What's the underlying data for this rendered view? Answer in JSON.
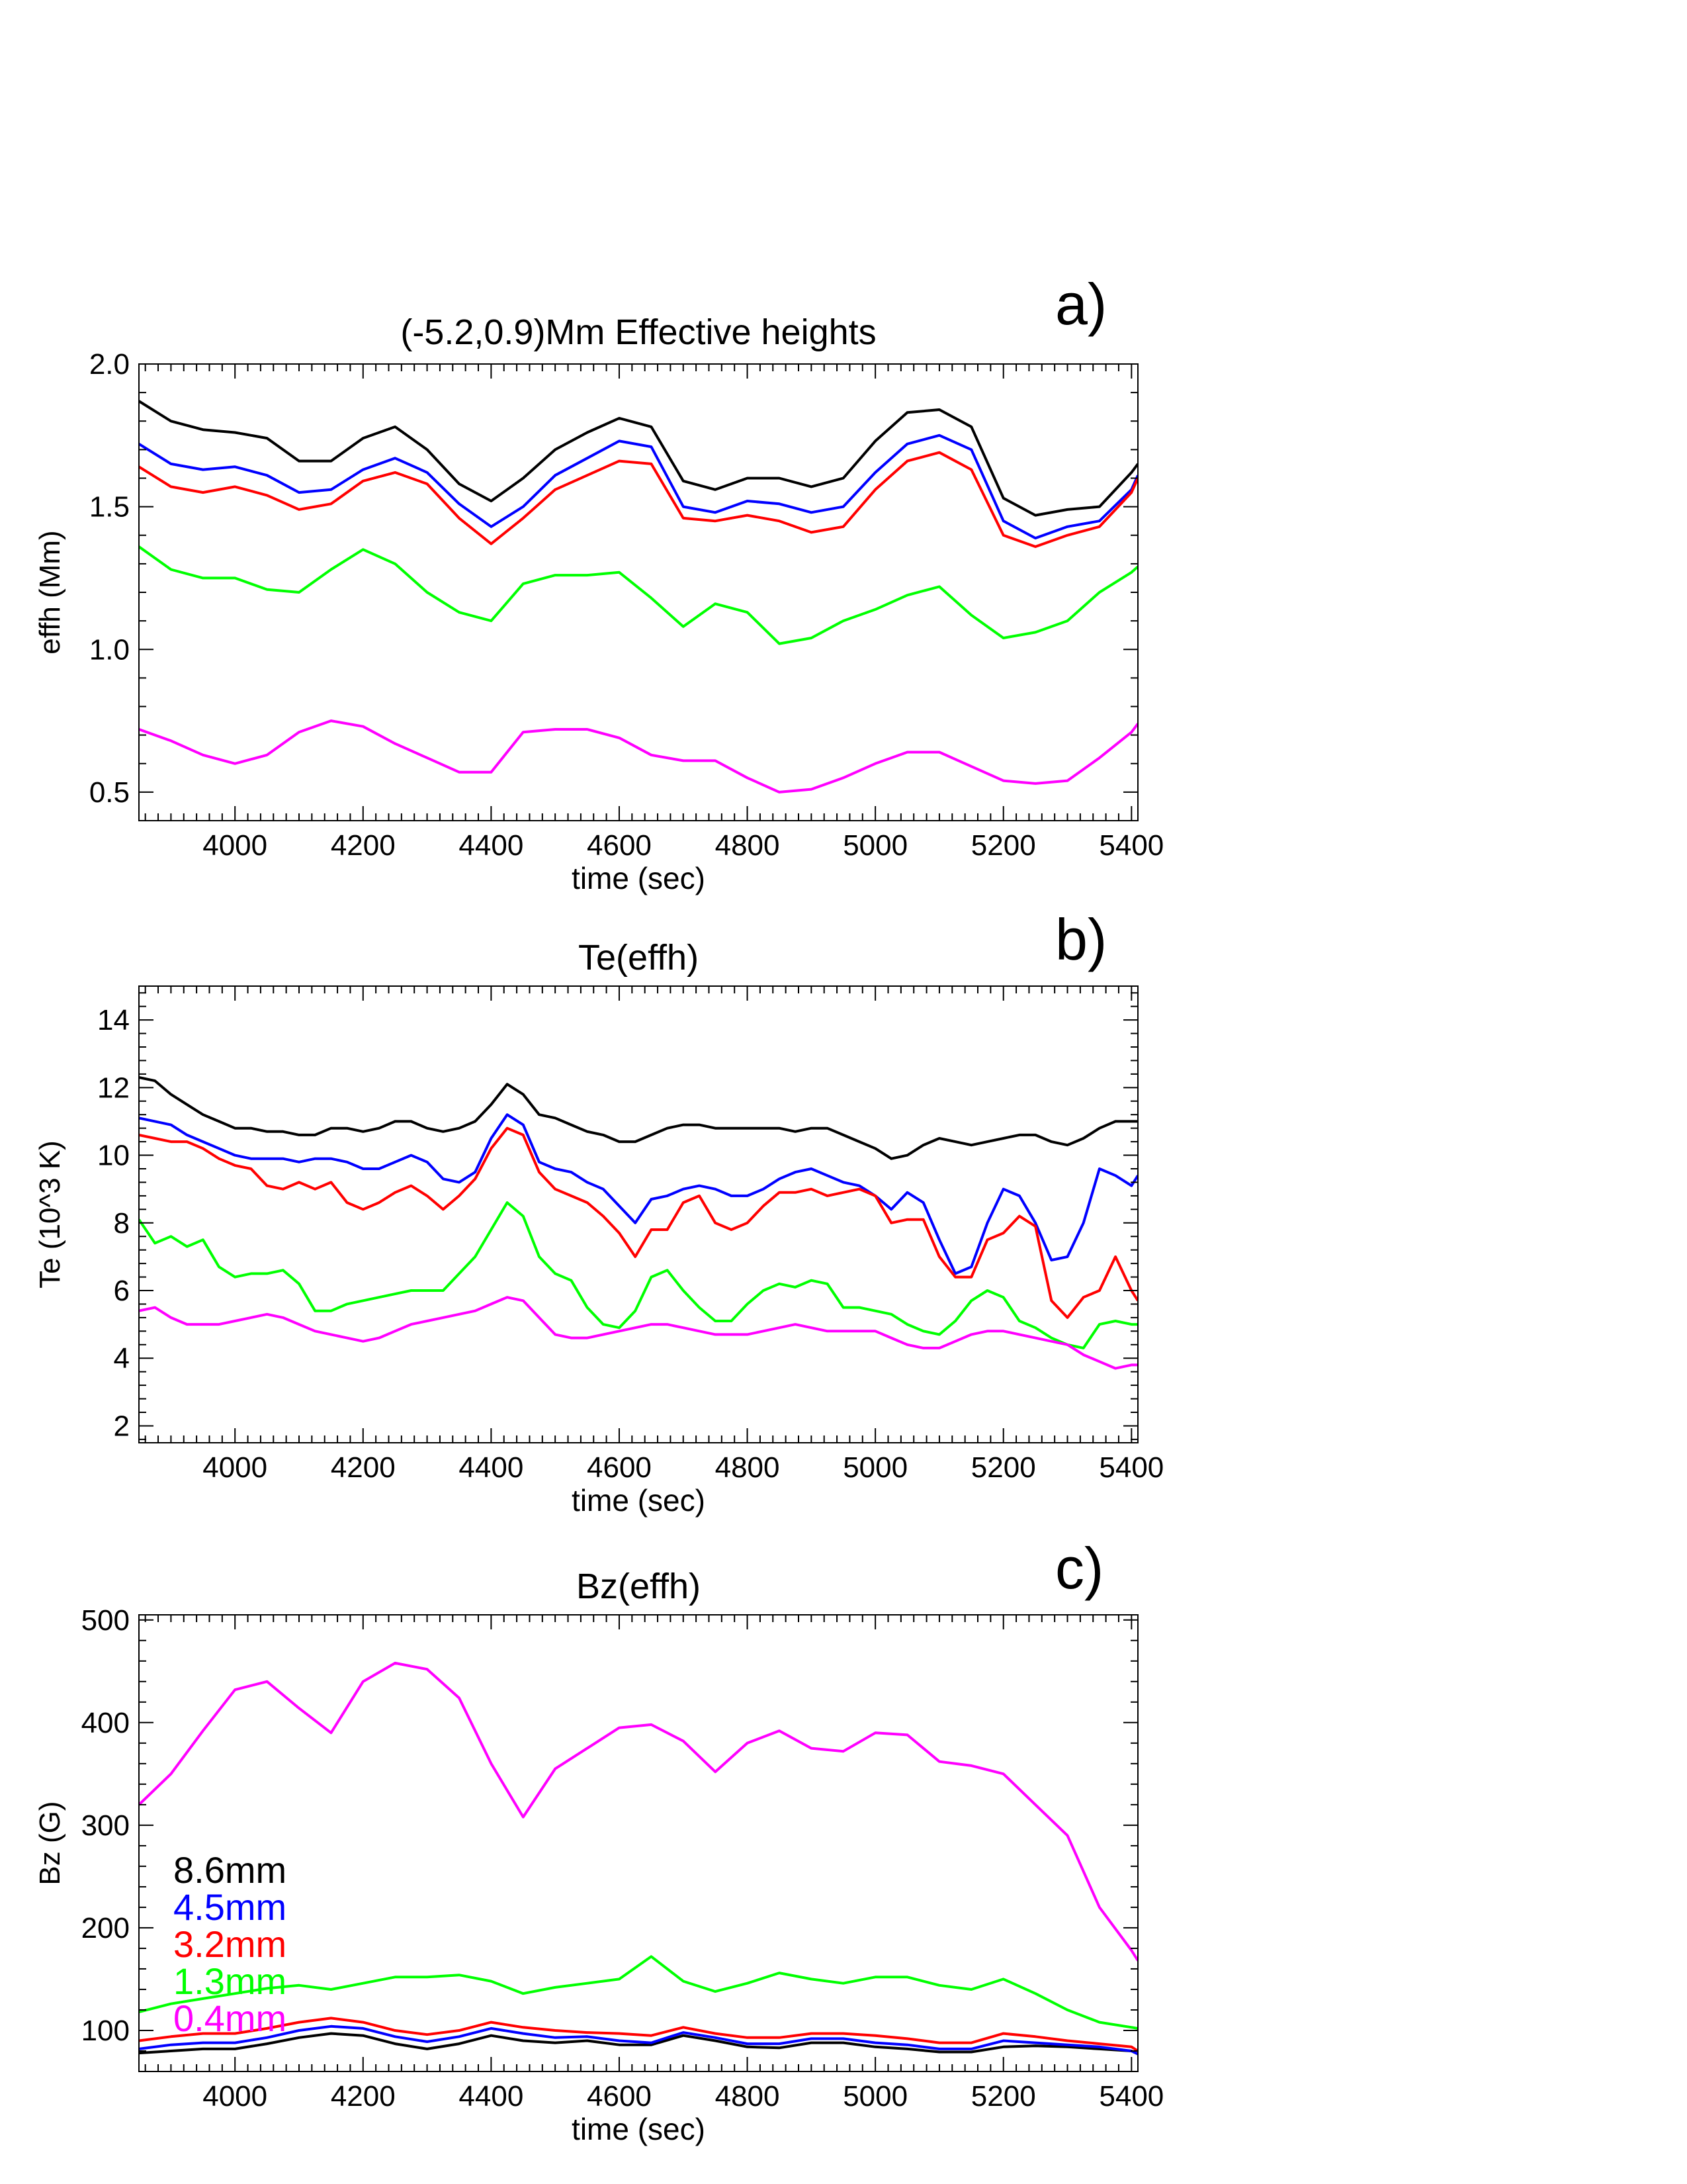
{
  "chart_data": [
    {
      "type": "line",
      "panel_label": "a)",
      "title": "(-5.2,0.9)Mm   Effective heights",
      "xlabel": "time (sec)",
      "ylabel": "effh (Mm)",
      "xlim": [
        3850,
        5410
      ],
      "ylim": [
        0.4,
        2.0
      ],
      "xticks": [
        4000,
        4200,
        4400,
        4600,
        4800,
        5000,
        5200,
        5400
      ],
      "yticks": [
        0.5,
        1.0,
        1.5,
        2.0
      ],
      "ytick_labels": [
        "0.5",
        "1.0",
        "1.5",
        "2.0"
      ],
      "x": [
        3850,
        3900,
        3950,
        4000,
        4050,
        4100,
        4150,
        4200,
        4250,
        4300,
        4350,
        4400,
        4450,
        4500,
        4550,
        4600,
        4650,
        4700,
        4750,
        4800,
        4850,
        4900,
        4950,
        5000,
        5050,
        5100,
        5150,
        5200,
        5250,
        5300,
        5350,
        5400,
        5410
      ],
      "series": [
        {
          "color": "#000000",
          "values": [
            1.87,
            1.8,
            1.77,
            1.76,
            1.74,
            1.66,
            1.66,
            1.74,
            1.78,
            1.7,
            1.58,
            1.52,
            1.6,
            1.7,
            1.76,
            1.81,
            1.78,
            1.59,
            1.56,
            1.6,
            1.6,
            1.57,
            1.6,
            1.73,
            1.83,
            1.84,
            1.78,
            1.53,
            1.47,
            1.49,
            1.5,
            1.62,
            1.65
          ]
        },
        {
          "color": "#0000ff",
          "values": [
            1.72,
            1.65,
            1.63,
            1.64,
            1.61,
            1.55,
            1.56,
            1.63,
            1.67,
            1.62,
            1.51,
            1.43,
            1.5,
            1.61,
            1.67,
            1.73,
            1.71,
            1.5,
            1.48,
            1.52,
            1.51,
            1.48,
            1.5,
            1.62,
            1.72,
            1.75,
            1.7,
            1.45,
            1.39,
            1.43,
            1.45,
            1.56,
            1.61
          ]
        },
        {
          "color": "#ff0000",
          "values": [
            1.64,
            1.57,
            1.55,
            1.57,
            1.54,
            1.49,
            1.51,
            1.59,
            1.62,
            1.58,
            1.46,
            1.37,
            1.46,
            1.56,
            1.61,
            1.66,
            1.65,
            1.46,
            1.45,
            1.47,
            1.45,
            1.41,
            1.43,
            1.56,
            1.66,
            1.69,
            1.63,
            1.4,
            1.36,
            1.4,
            1.43,
            1.55,
            1.6
          ]
        },
        {
          "color": "#00ff00",
          "values": [
            1.36,
            1.28,
            1.25,
            1.25,
            1.21,
            1.2,
            1.28,
            1.35,
            1.3,
            1.2,
            1.13,
            1.1,
            1.23,
            1.26,
            1.26,
            1.27,
            1.18,
            1.08,
            1.16,
            1.13,
            1.02,
            1.04,
            1.1,
            1.14,
            1.19,
            1.22,
            1.12,
            1.04,
            1.06,
            1.1,
            1.2,
            1.27,
            1.29
          ]
        },
        {
          "color": "#ff00ff",
          "values": [
            0.72,
            0.68,
            0.63,
            0.6,
            0.63,
            0.71,
            0.75,
            0.73,
            0.67,
            0.62,
            0.57,
            0.57,
            0.71,
            0.72,
            0.72,
            0.69,
            0.63,
            0.61,
            0.61,
            0.55,
            0.5,
            0.51,
            0.55,
            0.6,
            0.64,
            0.64,
            0.59,
            0.54,
            0.53,
            0.54,
            0.62,
            0.71,
            0.74
          ]
        }
      ]
    },
    {
      "type": "line",
      "panel_label": "b)",
      "title": "Te(effh)",
      "xlabel": "time (sec)",
      "ylabel": "Te (10^3 K)",
      "xlim": [
        3850,
        5410
      ],
      "ylim": [
        1.5,
        15
      ],
      "xticks": [
        4000,
        4200,
        4400,
        4600,
        4800,
        5000,
        5200,
        5400
      ],
      "yticks": [
        2,
        4,
        6,
        8,
        10,
        12,
        14
      ],
      "ytick_labels": [
        "2",
        "4",
        "6",
        "8",
        "10",
        "12",
        "14"
      ],
      "x": [
        3850,
        3875,
        3900,
        3925,
        3950,
        3975,
        4000,
        4025,
        4050,
        4075,
        4100,
        4125,
        4150,
        4175,
        4200,
        4225,
        4250,
        4275,
        4300,
        4325,
        4350,
        4375,
        4400,
        4425,
        4450,
        4475,
        4500,
        4525,
        4550,
        4575,
        4600,
        4625,
        4650,
        4675,
        4700,
        4725,
        4750,
        4775,
        4800,
        4825,
        4850,
        4875,
        4900,
        4925,
        4950,
        4975,
        5000,
        5025,
        5050,
        5075,
        5100,
        5125,
        5150,
        5175,
        5200,
        5225,
        5250,
        5275,
        5300,
        5325,
        5350,
        5375,
        5400,
        5410
      ],
      "series": [
        {
          "color": "#000000",
          "values": [
            12.3,
            12.2,
            11.8,
            11.5,
            11.2,
            11.0,
            10.8,
            10.8,
            10.7,
            10.7,
            10.6,
            10.6,
            10.8,
            10.8,
            10.7,
            10.8,
            11.0,
            11.0,
            10.8,
            10.7,
            10.8,
            11.0,
            11.5,
            12.1,
            11.8,
            11.2,
            11.1,
            10.9,
            10.7,
            10.6,
            10.4,
            10.4,
            10.6,
            10.8,
            10.9,
            10.9,
            10.8,
            10.8,
            10.8,
            10.8,
            10.8,
            10.7,
            10.8,
            10.8,
            10.6,
            10.4,
            10.2,
            9.9,
            10.0,
            10.3,
            10.5,
            10.4,
            10.3,
            10.4,
            10.5,
            10.6,
            10.6,
            10.4,
            10.3,
            10.5,
            10.8,
            11.0,
            11.0,
            11.0
          ]
        },
        {
          "color": "#0000ff",
          "values": [
            11.1,
            11.0,
            10.9,
            10.6,
            10.4,
            10.2,
            10.0,
            9.9,
            9.9,
            9.9,
            9.8,
            9.9,
            9.9,
            9.8,
            9.6,
            9.6,
            9.8,
            10.0,
            9.8,
            9.3,
            9.2,
            9.5,
            10.5,
            11.2,
            10.9,
            9.8,
            9.6,
            9.5,
            9.2,
            9.0,
            8.5,
            8.0,
            8.7,
            8.8,
            9.0,
            9.1,
            9.0,
            8.8,
            8.8,
            9.0,
            9.3,
            9.5,
            9.6,
            9.4,
            9.2,
            9.1,
            8.8,
            8.4,
            8.9,
            8.6,
            7.5,
            6.5,
            6.7,
            8.0,
            9.0,
            8.8,
            8.0,
            6.9,
            7.0,
            8.0,
            9.6,
            9.4,
            9.1,
            9.4
          ]
        },
        {
          "color": "#ff0000",
          "values": [
            10.6,
            10.5,
            10.4,
            10.4,
            10.2,
            9.9,
            9.7,
            9.6,
            9.1,
            9.0,
            9.2,
            9.0,
            9.2,
            8.6,
            8.4,
            8.6,
            8.9,
            9.1,
            8.8,
            8.4,
            8.8,
            9.3,
            10.2,
            10.8,
            10.6,
            9.5,
            9.0,
            8.8,
            8.6,
            8.2,
            7.7,
            7.0,
            7.8,
            7.8,
            8.6,
            8.8,
            8.0,
            7.8,
            8.0,
            8.5,
            8.9,
            8.9,
            9.0,
            8.8,
            8.9,
            9.0,
            8.8,
            8.0,
            8.1,
            8.1,
            7.0,
            6.4,
            6.4,
            7.5,
            7.7,
            8.2,
            7.9,
            5.7,
            5.2,
            5.8,
            6.0,
            7.0,
            6.0,
            5.7
          ]
        },
        {
          "color": "#00ff00",
          "values": [
            8.1,
            7.4,
            7.6,
            7.3,
            7.5,
            6.7,
            6.4,
            6.5,
            6.5,
            6.6,
            6.2,
            5.4,
            5.4,
            5.6,
            5.7,
            5.8,
            5.9,
            6.0,
            6.0,
            6.0,
            6.5,
            7.0,
            7.8,
            8.6,
            8.2,
            7.0,
            6.5,
            6.3,
            5.5,
            5.0,
            4.9,
            5.4,
            6.4,
            6.6,
            6.0,
            5.5,
            5.1,
            5.1,
            5.6,
            6.0,
            6.2,
            6.1,
            6.3,
            6.2,
            5.5,
            5.5,
            5.4,
            5.3,
            5.0,
            4.8,
            4.7,
            5.1,
            5.7,
            6.0,
            5.8,
            5.1,
            4.9,
            4.6,
            4.4,
            4.3,
            5.0,
            5.1,
            5.0,
            5.0
          ]
        },
        {
          "color": "#ff00ff",
          "values": [
            5.4,
            5.5,
            5.2,
            5.0,
            5.0,
            5.0,
            5.1,
            5.2,
            5.3,
            5.2,
            5.0,
            4.8,
            4.7,
            4.6,
            4.5,
            4.6,
            4.8,
            5.0,
            5.1,
            5.2,
            5.3,
            5.4,
            5.6,
            5.8,
            5.7,
            5.2,
            4.7,
            4.6,
            4.6,
            4.7,
            4.8,
            4.9,
            5.0,
            5.0,
            4.9,
            4.8,
            4.7,
            4.7,
            4.7,
            4.8,
            4.9,
            5.0,
            4.9,
            4.8,
            4.8,
            4.8,
            4.8,
            4.6,
            4.4,
            4.3,
            4.3,
            4.5,
            4.7,
            4.8,
            4.8,
            4.7,
            4.6,
            4.5,
            4.4,
            4.1,
            3.9,
            3.7,
            3.8,
            3.8
          ]
        }
      ]
    },
    {
      "type": "line",
      "panel_label": "c)",
      "title": "Bz(effh)",
      "xlabel": "time (sec)",
      "ylabel": "Bz (G)",
      "xlim": [
        3850,
        5410
      ],
      "ylim": [
        60,
        505
      ],
      "xticks": [
        4000,
        4200,
        4400,
        4600,
        4800,
        5000,
        5200,
        5400
      ],
      "yticks": [
        100,
        200,
        300,
        400,
        500
      ],
      "ytick_labels": [
        "100",
        "200",
        "300",
        "400",
        "500"
      ],
      "legend": {
        "placement": "lower-left",
        "entries": [
          {
            "label": "8.6mm",
            "color": "#000000"
          },
          {
            "label": "4.5mm",
            "color": "#0000ff"
          },
          {
            "label": "3.2mm",
            "color": "#ff0000"
          },
          {
            "label": "1.3mm",
            "color": "#00ff00"
          },
          {
            "label": "0.4mm",
            "color": "#ff00ff"
          }
        ]
      },
      "x": [
        3850,
        3900,
        3950,
        4000,
        4050,
        4100,
        4150,
        4200,
        4250,
        4300,
        4350,
        4400,
        4450,
        4500,
        4550,
        4600,
        4650,
        4700,
        4750,
        4800,
        4850,
        4900,
        4950,
        5000,
        5050,
        5100,
        5150,
        5200,
        5250,
        5300,
        5350,
        5400,
        5410
      ],
      "series": [
        {
          "name": "8.6mm",
          "color": "#000000",
          "values": [
            78,
            80,
            82,
            82,
            87,
            93,
            97,
            95,
            87,
            82,
            87,
            95,
            90,
            88,
            90,
            86,
            86,
            95,
            90,
            84,
            83,
            88,
            88,
            84,
            82,
            79,
            79,
            84,
            85,
            84,
            82,
            80,
            77
          ]
        },
        {
          "name": "4.5mm",
          "color": "#0000ff",
          "values": [
            82,
            86,
            88,
            88,
            93,
            100,
            104,
            102,
            94,
            89,
            94,
            102,
            97,
            93,
            94,
            90,
            88,
            98,
            93,
            87,
            87,
            92,
            92,
            88,
            86,
            82,
            82,
            90,
            88,
            86,
            84,
            80,
            77
          ]
        },
        {
          "name": "3.2mm",
          "color": "#ff0000",
          "values": [
            90,
            94,
            97,
            97,
            102,
            108,
            112,
            108,
            100,
            96,
            100,
            108,
            103,
            100,
            98,
            97,
            95,
            103,
            97,
            93,
            93,
            97,
            97,
            95,
            92,
            88,
            88,
            97,
            94,
            90,
            87,
            84,
            80
          ]
        },
        {
          "name": "1.3mm",
          "color": "#00ff00",
          "values": [
            118,
            126,
            131,
            136,
            141,
            144,
            140,
            146,
            152,
            152,
            154,
            148,
            136,
            142,
            146,
            150,
            172,
            148,
            138,
            146,
            156,
            150,
            146,
            152,
            152,
            144,
            140,
            150,
            136,
            120,
            108,
            103,
            102
          ]
        },
        {
          "name": "0.4mm",
          "color": "#ff00ff",
          "values": [
            320,
            350,
            392,
            432,
            440,
            414,
            390,
            440,
            458,
            452,
            424,
            360,
            308,
            355,
            375,
            395,
            398,
            382,
            352,
            380,
            392,
            375,
            372,
            390,
            388,
            362,
            358,
            350,
            320,
            290,
            220,
            178,
            168
          ]
        }
      ]
    }
  ]
}
